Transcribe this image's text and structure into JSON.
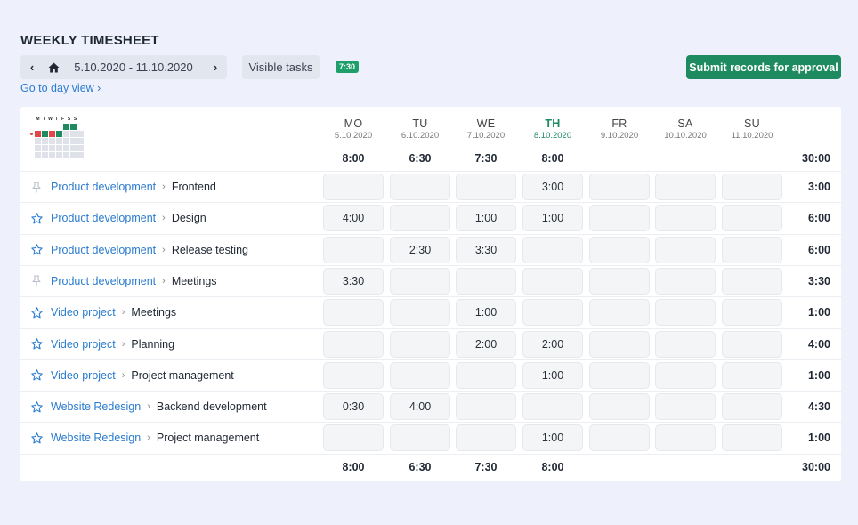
{
  "title": "WEEKLY TIMESHEET",
  "nav": {
    "prev": "‹",
    "next": "›",
    "range": "5.10.2020 - 11.10.2020"
  },
  "visible_tasks_label": "Visible tasks",
  "visible_tasks_badge": "7:30",
  "day_view_link": "Go to day view ›",
  "submit_label": "Submit records for approval",
  "mini_calendar": {
    "header": [
      "M",
      "T",
      "W",
      "T",
      "F",
      "S",
      "S"
    ]
  },
  "days": [
    {
      "name": "MO",
      "date": "5.10.2020",
      "total": "8:00"
    },
    {
      "name": "TU",
      "date": "6.10.2020",
      "total": "6:30"
    },
    {
      "name": "WE",
      "date": "7.10.2020",
      "total": "7:30"
    },
    {
      "name": "TH",
      "date": "8.10.2020",
      "total": "8:00",
      "today": true
    },
    {
      "name": "FR",
      "date": "9.10.2020",
      "total": ""
    },
    {
      "name": "SA",
      "date": "10.10.2020",
      "total": ""
    },
    {
      "name": "SU",
      "date": "11.10.2020",
      "total": ""
    }
  ],
  "week_total": "30:00",
  "footer_totals": [
    "8:00",
    "6:30",
    "7:30",
    "8:00",
    "",
    "",
    ""
  ],
  "footer_total": "30:00",
  "rows": [
    {
      "icon": "pin-icon",
      "project": "Product development",
      "task": "Frontend",
      "hours": [
        "",
        "",
        "",
        "3:00",
        "",
        "",
        ""
      ],
      "total": "3:00"
    },
    {
      "icon": "star-icon",
      "project": "Product development",
      "task": "Design",
      "hours": [
        "4:00",
        "",
        "1:00",
        "1:00",
        "",
        "",
        ""
      ],
      "total": "6:00"
    },
    {
      "icon": "star-icon",
      "project": "Product development",
      "task": "Release testing",
      "hours": [
        "",
        "2:30",
        "3:30",
        "",
        "",
        "",
        ""
      ],
      "total": "6:00"
    },
    {
      "icon": "pin-icon",
      "project": "Product development",
      "task": "Meetings",
      "hours": [
        "3:30",
        "",
        "",
        "",
        "",
        "",
        ""
      ],
      "total": "3:30"
    },
    {
      "icon": "star-icon",
      "project": "Video project",
      "task": "Meetings",
      "hours": [
        "",
        "",
        "1:00",
        "",
        "",
        "",
        ""
      ],
      "total": "1:00"
    },
    {
      "icon": "star-icon",
      "project": "Video project",
      "task": "Planning",
      "hours": [
        "",
        "",
        "2:00",
        "2:00",
        "",
        "",
        ""
      ],
      "total": "4:00"
    },
    {
      "icon": "star-icon",
      "project": "Video project",
      "task": "Project management",
      "hours": [
        "",
        "",
        "",
        "1:00",
        "",
        "",
        ""
      ],
      "total": "1:00"
    },
    {
      "icon": "star-icon",
      "project": "Website Redesign",
      "task": "Backend development",
      "hours": [
        "0:30",
        "4:00",
        "",
        "",
        "",
        "",
        ""
      ],
      "total": "4:30"
    },
    {
      "icon": "star-icon",
      "project": "Website Redesign",
      "task": "Project management",
      "hours": [
        "",
        "",
        "",
        "1:00",
        "",
        "",
        ""
      ],
      "total": "1:00"
    }
  ],
  "colors": {
    "accent": "#1e8a60",
    "link": "#2b7ccf",
    "background": "#eef1fb"
  }
}
